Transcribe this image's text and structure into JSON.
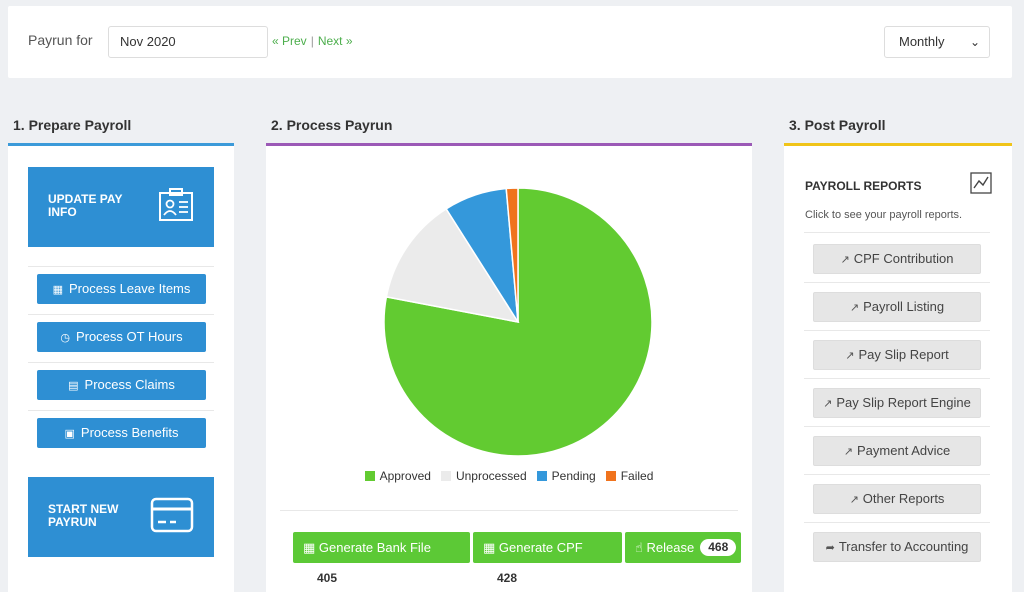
{
  "topbar": {
    "label": "Payrun for",
    "period": "Nov 2020",
    "prev": "« Prev",
    "separator": "|",
    "next": "Next »",
    "frequency": "Monthly"
  },
  "sections": {
    "prepare": "1. Prepare Payroll",
    "process": "2. Process Payrun",
    "post": "3. Post Payroll"
  },
  "prepare": {
    "update_pay": "UPDATE PAY INFO",
    "items": [
      "Process Leave Items",
      "Process OT Hours",
      "Process Claims",
      "Process Benefits"
    ],
    "start_new": "START NEW PAYRUN"
  },
  "chart_data": {
    "type": "pie",
    "categories": [
      "Approved",
      "Unprocessed",
      "Pending",
      "Failed"
    ],
    "values": [
      78,
      13,
      7.6,
      1.4
    ],
    "colors": [
      "#62cb31",
      "#ebebeb",
      "#3498db",
      "#f0731d"
    ],
    "legend_position": "bottom"
  },
  "process": {
    "actions": [
      {
        "label": "Generate Bank File",
        "count": "405"
      },
      {
        "label": "Generate CPF",
        "count": "428"
      },
      {
        "label": "Release",
        "count": "468"
      }
    ]
  },
  "post": {
    "title": "PAYROLL REPORTS",
    "subtitle": "Click to see your payroll reports.",
    "reports": [
      "CPF Contribution",
      "Payroll Listing",
      "Pay Slip Report",
      "Pay Slip Report Engine",
      "Payment Advice",
      "Other Reports",
      "Transfer to Accounting"
    ]
  },
  "icons": {
    "report": "line-chart-icon",
    "transfer": "share-icon"
  }
}
